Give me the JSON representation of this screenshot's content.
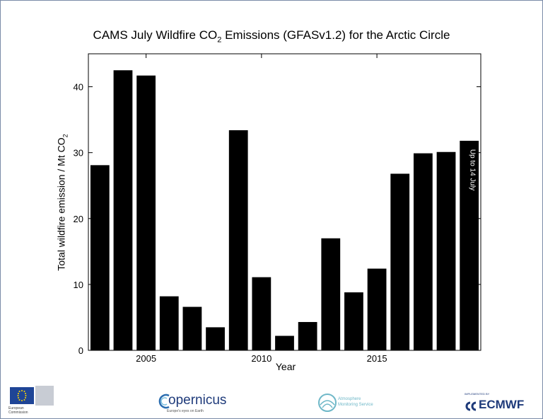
{
  "chart_data": {
    "type": "bar",
    "title_main": "CAMS  July Wildfire CO",
    "title_sub": "2",
    "title_rest": " Emissions  (GFASv1.2) for the Arctic Circle",
    "ylabel_main": "Total wildfire emission / Mt CO",
    "ylabel_sub": "2",
    "xlabel": "Year",
    "x": [
      2003,
      2004,
      2005,
      2006,
      2007,
      2008,
      2009,
      2010,
      2011,
      2012,
      2013,
      2014,
      2015,
      2016,
      2017,
      2018,
      2019
    ],
    "values": [
      28.1,
      42.5,
      41.7,
      8.2,
      6.6,
      3.5,
      33.4,
      11.1,
      2.2,
      4.3,
      17.0,
      8.8,
      12.4,
      26.8,
      29.9,
      30.1,
      31.8
    ],
    "xticks": [
      2005,
      2010,
      2015
    ],
    "yticks": [
      0,
      10,
      20,
      30,
      40
    ],
    "ylim": [
      0,
      45
    ],
    "xlim": [
      2002.5,
      2019.5
    ],
    "bar_color": "#000000",
    "annotation": {
      "text": "Up to 14 July",
      "x": 2019
    }
  },
  "footer": {
    "eu_text": "European\nCommission",
    "copernicus_name": "opernicus",
    "copernicus_tagline": "Europe's eyes on Earth",
    "cams_text": "Atmosphere\nMonitoring Service",
    "ecmwf_tag": "IMPLEMENTED BY",
    "ecmwf_name": "ECMWF"
  }
}
